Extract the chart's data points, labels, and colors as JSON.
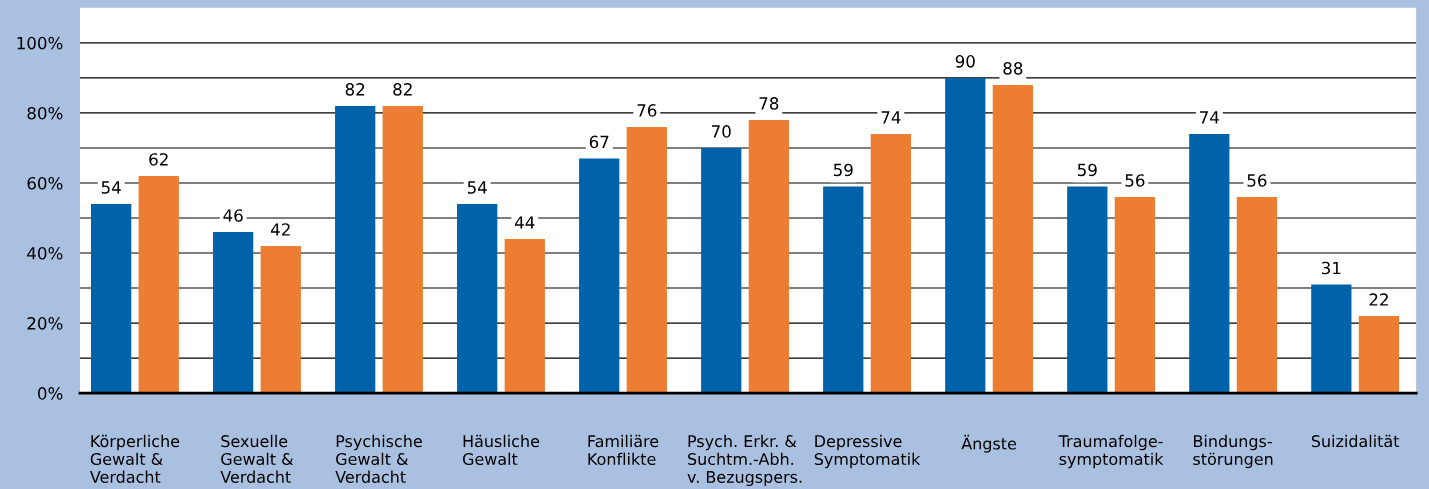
{
  "chart_data": {
    "type": "bar",
    "categories": [
      "Körperliche\nGewalt &\nVerdacht",
      "Sexuelle\nGewalt &\nVerdacht",
      "Psychische\nGewalt &\nVerdacht",
      "Häusliche\nGewalt",
      "Familiäre\nKonflikte",
      "Psych. Erkr. &\nSuchtm.-Abh.\nv. Bezugspers.",
      "Depressive\nSymptomatik",
      "Ängste",
      "Traumafolge-\nsymptomatik",
      "Bindungs-\nstörungen",
      "Suizidalität"
    ],
    "series": [
      {
        "color": "#0062a8",
        "values": [
          54,
          46,
          82,
          54,
          67,
          70,
          59,
          90,
          59,
          74,
          31
        ]
      },
      {
        "color": "#ed7d32",
        "values": [
          62,
          42,
          82,
          44,
          76,
          78,
          74,
          88,
          56,
          56,
          22
        ]
      }
    ],
    "ylim": [
      0,
      110
    ],
    "yticks": [
      {
        "value": 0,
        "label": "0%"
      },
      {
        "value": 10,
        "label": null
      },
      {
        "value": 20,
        "label": "20%"
      },
      {
        "value": 30,
        "label": null
      },
      {
        "value": 40,
        "label": "40%"
      },
      {
        "value": 50,
        "label": null
      },
      {
        "value": 60,
        "label": "60%"
      },
      {
        "value": 70,
        "label": null
      },
      {
        "value": 80,
        "label": "80%"
      },
      {
        "value": 90,
        "label": null
      },
      {
        "value": 100,
        "label": "100%"
      }
    ],
    "grid": "y",
    "data_labels": true,
    "legend": false
  }
}
